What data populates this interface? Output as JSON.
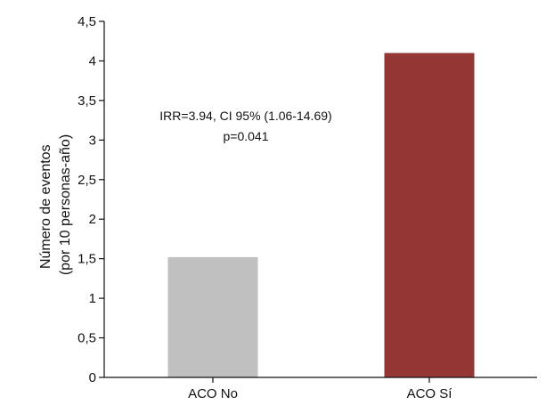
{
  "chart_data": {
    "type": "bar",
    "categories": [
      "ACO No",
      "ACO Sí"
    ],
    "values": [
      1.52,
      4.1
    ],
    "colors": [
      "#c0c0c0",
      "#943634"
    ],
    "ylabel_line1": "Número de eventos",
    "ylabel_line2": "(por 10 personas-año)",
    "ylim": [
      0,
      4.5
    ],
    "yticks": [
      0,
      0.5,
      1,
      1.5,
      2,
      2.5,
      3,
      3.5,
      4,
      4.5
    ],
    "ytick_labels": [
      "0",
      "0,5",
      "1",
      "1,5",
      "2",
      "2,5",
      "3",
      "3,5",
      "4",
      "4,5"
    ],
    "grid": false,
    "annotation_line1": "IRR=3.94, CI 95% (1.06-14.69)",
    "annotation_line2": "p=0.041"
  }
}
